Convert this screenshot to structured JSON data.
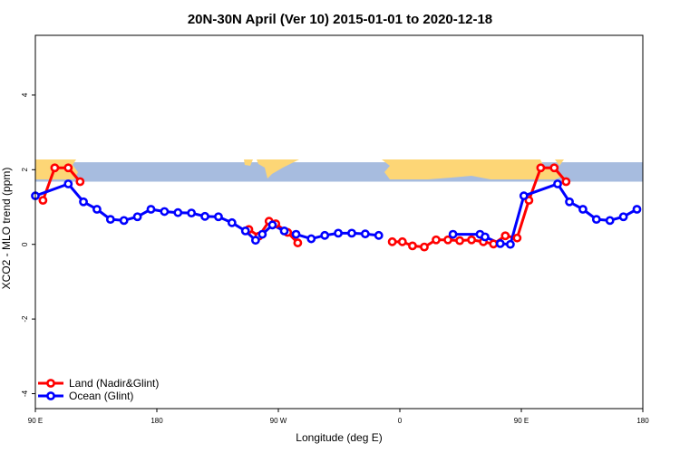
{
  "chart_data": {
    "type": "line",
    "title": "20N-30N April (Ver 10)   2015-01-01 to 2020-12-18",
    "xlabel": "Longitude (deg E)",
    "ylabel": "XCO2 - MLO trend (ppm)",
    "xlim": [
      90,
      450
    ],
    "ylim": [
      -4.4,
      5.6
    ],
    "x_ticks": [
      {
        "value": 90,
        "label": "90 E"
      },
      {
        "value": 162,
        "label": "180"
      },
      {
        "value": 234,
        "label": "90 W"
      },
      {
        "value": 306,
        "label": "0"
      },
      {
        "value": 378,
        "label": "90 E"
      },
      {
        "value": 450,
        "label": "180"
      }
    ],
    "y_ticks": [
      {
        "value": -4,
        "label": "-4"
      },
      {
        "value": -2,
        "label": "-2"
      },
      {
        "value": 0,
        "label": "0"
      },
      {
        "value": 2,
        "label": "2"
      },
      {
        "value": 4,
        "label": "4"
      }
    ],
    "legend_position": "bottom-left",
    "map_strip": {
      "y_range": [
        1.68,
        2.2
      ],
      "ocean_color": "#a7bcdf",
      "land_color": "#fdd676"
    },
    "series": [
      {
        "name": "Land (Nadir&Glint)",
        "color": "#ff0000",
        "segments": [
          [
            [
              94.5,
              1.18
            ],
            [
              101.5,
              2.05
            ],
            [
              109.5,
              2.05
            ],
            [
              116.5,
              1.68
            ]
          ],
          [
            [
              216.5,
              0.4
            ],
            [
              222.5,
              0.22
            ],
            [
              228.5,
              0.62
            ],
            [
              232.5,
              0.55
            ],
            [
              239.5,
              0.32
            ],
            [
              245.5,
              0.04
            ]
          ],
          [
            [
              301.5,
              0.07
            ],
            [
              307.5,
              0.07
            ],
            [
              313.5,
              -0.04
            ],
            [
              320.5,
              -0.07
            ],
            [
              327.5,
              0.12
            ],
            [
              334.5,
              0.12
            ],
            [
              341.5,
              0.1
            ],
            [
              348.5,
              0.12
            ],
            [
              355.5,
              0.07
            ],
            [
              361.5,
              0.01
            ],
            [
              368.5,
              0.23
            ],
            [
              375.5,
              0.17
            ],
            [
              382.5,
              1.18
            ],
            [
              389.5,
              2.05
            ],
            [
              397.5,
              2.05
            ],
            [
              404.5,
              1.68
            ]
          ]
        ]
      },
      {
        "name": "Ocean (Glint)",
        "color": "#0000ff",
        "segments": [
          [
            [
              90,
              1.3
            ],
            [
              109.5,
              1.62
            ],
            [
              118.5,
              1.14
            ],
            [
              126.5,
              0.94
            ],
            [
              134.5,
              0.67
            ],
            [
              142.5,
              0.64
            ],
            [
              150.5,
              0.74
            ],
            [
              158.5,
              0.94
            ],
            [
              166.5,
              0.88
            ],
            [
              174.5,
              0.85
            ],
            [
              182.5,
              0.84
            ],
            [
              190.5,
              0.75
            ],
            [
              198.5,
              0.74
            ],
            [
              206.5,
              0.58
            ],
            [
              214.5,
              0.36
            ],
            [
              220.5,
              0.11
            ],
            [
              224.5,
              0.27
            ],
            [
              230.5,
              0.52
            ],
            [
              237.5,
              0.36
            ],
            [
              244.5,
              0.27
            ],
            [
              253.5,
              0.15
            ],
            [
              261.5,
              0.24
            ],
            [
              269.5,
              0.3
            ],
            [
              277.5,
              0.3
            ],
            [
              285.5,
              0.28
            ],
            [
              293.5,
              0.24
            ]
          ],
          [
            [
              337.5,
              0.27
            ],
            [
              353.5,
              0.27
            ],
            [
              356.5,
              0.2
            ],
            [
              365.5,
              0.02
            ],
            [
              371.5,
              0.0
            ],
            [
              379.5,
              1.3
            ],
            [
              399.5,
              1.62
            ],
            [
              406.5,
              1.14
            ],
            [
              414.5,
              0.94
            ],
            [
              422.5,
              0.67
            ],
            [
              430.5,
              0.64
            ],
            [
              438.5,
              0.74
            ],
            [
              446.5,
              0.94
            ]
          ]
        ]
      }
    ]
  }
}
